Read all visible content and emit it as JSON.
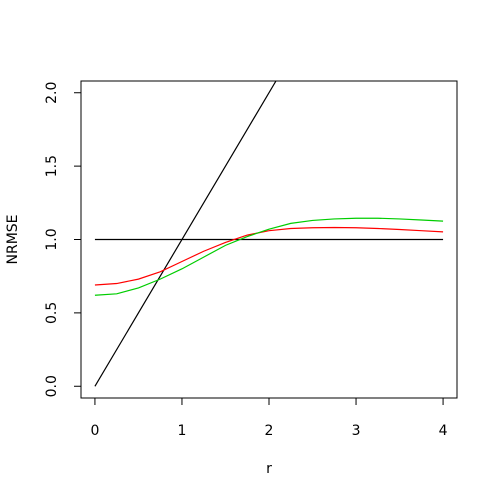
{
  "chart_data": {
    "type": "line",
    "title": "",
    "xlabel": "r",
    "ylabel": "NRMSE",
    "xlim": [
      -0.16,
      4.16
    ],
    "ylim": [
      -0.08,
      2.08
    ],
    "x_ticks": [
      0,
      1,
      2,
      3,
      4
    ],
    "y_ticks": [
      0.0,
      0.5,
      1.0,
      1.5,
      2.0
    ],
    "x_tick_labels": [
      "0",
      "1",
      "2",
      "3",
      "4"
    ],
    "y_tick_labels": [
      "0.0",
      "0.5",
      "1.0",
      "1.5",
      "2.0"
    ],
    "grid": false,
    "legend": "none",
    "series": [
      {
        "color": "#000000",
        "x": [
          0,
          2.08
        ],
        "y": [
          0.0,
          2.08
        ]
      },
      {
        "color": "#000000",
        "x": [
          0,
          4
        ],
        "y": [
          1.0,
          1.0
        ]
      },
      {
        "color": "#ff0000",
        "x": [
          0,
          0.25,
          0.5,
          0.75,
          1.0,
          1.25,
          1.5,
          1.75,
          2.0,
          2.25,
          2.5,
          2.75,
          3.0,
          3.25,
          3.5,
          3.75,
          4.0
        ],
        "y": [
          0.69,
          0.7,
          0.73,
          0.78,
          0.85,
          0.92,
          0.98,
          1.03,
          1.06,
          1.075,
          1.08,
          1.082,
          1.08,
          1.075,
          1.068,
          1.06,
          1.052
        ]
      },
      {
        "color": "#00cd00",
        "x": [
          0,
          0.25,
          0.5,
          0.75,
          1.0,
          1.25,
          1.5,
          1.75,
          2.0,
          2.25,
          2.5,
          2.75,
          3.0,
          3.25,
          3.5,
          3.75,
          4.0
        ],
        "y": [
          0.62,
          0.63,
          0.67,
          0.73,
          0.8,
          0.88,
          0.96,
          1.02,
          1.07,
          1.11,
          1.13,
          1.14,
          1.145,
          1.145,
          1.14,
          1.133,
          1.125
        ]
      }
    ]
  }
}
